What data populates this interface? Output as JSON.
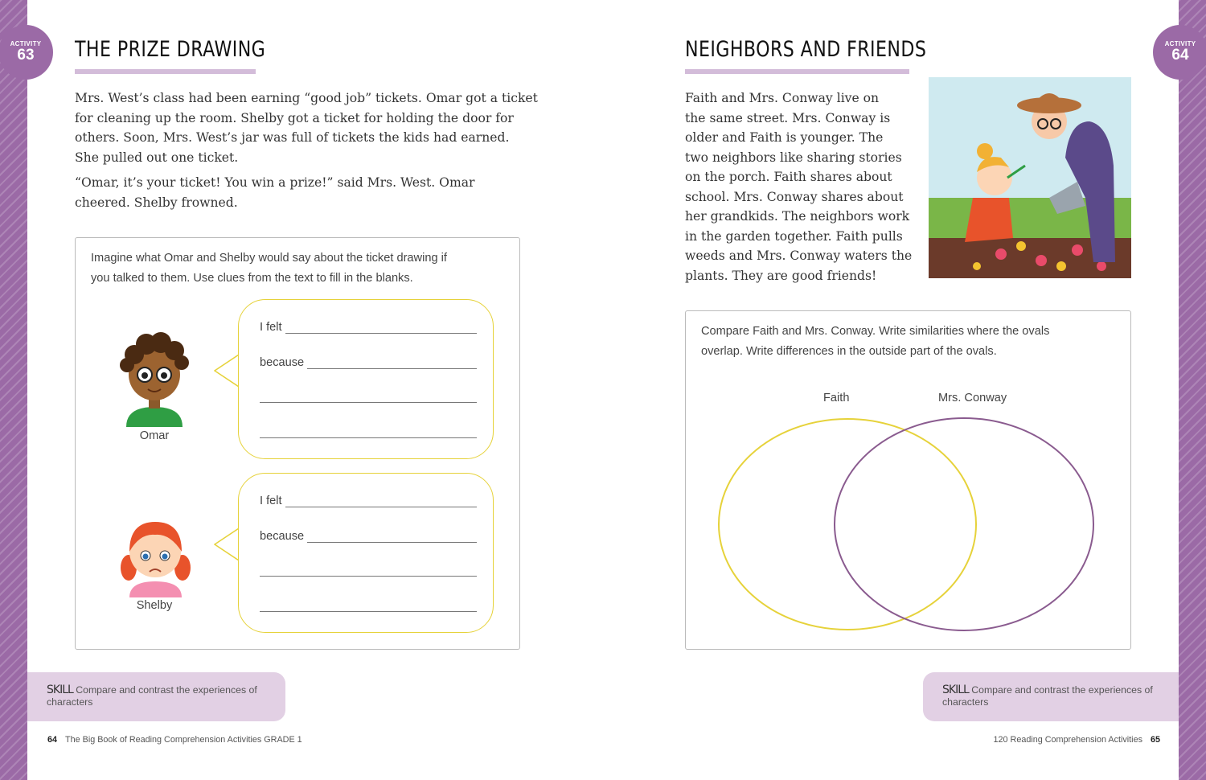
{
  "colors": {
    "accent": "#9b6aa6",
    "underline": "#d3bcd9",
    "skill_bg": "#e2d0e4",
    "faith_oval": "#e6d23a",
    "conway_oval": "#8a5b8f"
  },
  "left": {
    "badge": {
      "label": "ACTIVITY",
      "number": "63"
    },
    "title": "THE PRIZE DRAWING",
    "paragraphs": [
      [
        "Mrs. West’s class had been earning “good job” tickets. Omar got a ticket",
        "for cleaning up the room. Shelby got a ticket for holding the door for",
        "others. Soon, Mrs. West’s jar was full of tickets the kids had earned.",
        "She pulled out one ticket."
      ],
      [
        "“Omar, it’s your ticket! You win a prize!” said Mrs. West. Omar",
        "cheered. Shelby frowned."
      ]
    ],
    "prompt": [
      "Imagine what Omar and Shelby would say about the ticket drawing if",
      "you talked to them. Use clues from the text to fill in the blanks."
    ],
    "characters": [
      {
        "name": "Omar",
        "felt": "I felt",
        "because": "because"
      },
      {
        "name": "Shelby",
        "felt": "I felt",
        "because": "because"
      }
    ],
    "skill": {
      "label": "SKILL",
      "text": "Compare and contrast the experiences of",
      "text2": "characters"
    },
    "footer": {
      "page": "64",
      "book": "The Big Book of Reading Comprehension Activities GRADE 1"
    }
  },
  "right": {
    "badge": {
      "label": "ACTIVITY",
      "number": "64"
    },
    "title": "NEIGHBORS AND FRIENDS",
    "paragraph": [
      "Faith and Mrs. Conway live on",
      "the same street. Mrs. Conway is",
      "older and Faith is younger. The",
      "two neighbors like sharing stories",
      "on the porch. Faith shares about",
      "school. Mrs. Conway shares about",
      "her grandkids. The neighbors work",
      "in the garden together. Faith pulls",
      "weeds and Mrs. Conway waters the",
      "plants. They are good friends!"
    ],
    "prompt": [
      "Compare Faith and Mrs. Conway. Write similarities where the ovals",
      "overlap. Write differences in the outside part of the ovals."
    ],
    "venn": {
      "left_label": "Faith",
      "right_label": "Mrs. Conway"
    },
    "skill": {
      "label": "SKILL",
      "text": "Compare and contrast the experiences of",
      "text2": "characters"
    },
    "footer": {
      "page": "65",
      "book": "120 Reading Comprehension Activities"
    }
  }
}
